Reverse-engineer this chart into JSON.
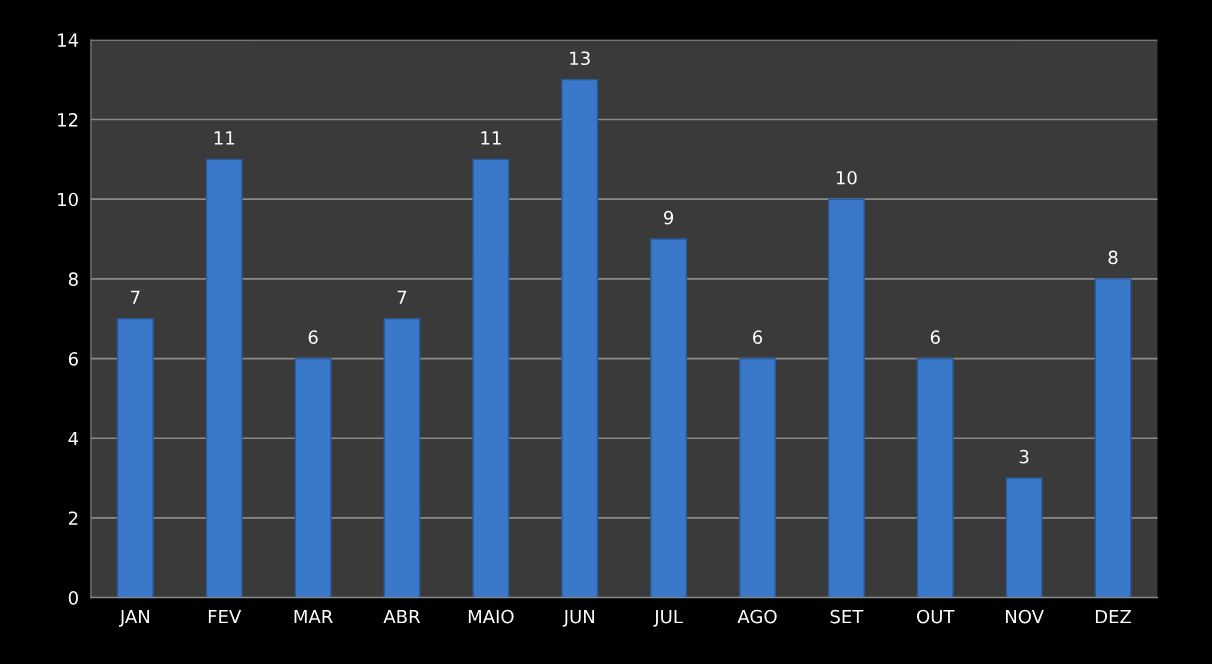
{
  "chart_data": {
    "type": "bar",
    "categories": [
      "JAN",
      "FEV",
      "MAR",
      "ABR",
      "MAIO",
      "JUN",
      "JUL",
      "AGO",
      "SET",
      "OUT",
      "NOV",
      "DEZ"
    ],
    "values": [
      7,
      11,
      6,
      7,
      11,
      13,
      9,
      6,
      10,
      6,
      3,
      8
    ],
    "color": "#3a78c9",
    "ylim": [
      0,
      14
    ],
    "yticks": [
      0,
      2,
      4,
      6,
      8,
      10,
      12,
      14
    ],
    "grid": "y",
    "data_labels": true,
    "legend": false
  }
}
